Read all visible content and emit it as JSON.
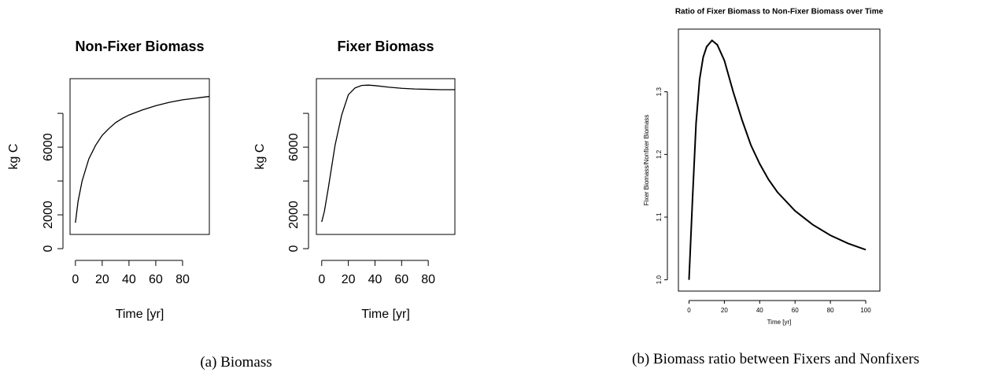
{
  "chart_data": [
    {
      "type": "line",
      "title": "Non-Fixer Biomass",
      "x_label": "Time [yr]",
      "y_label": "kg C",
      "color": "#000000",
      "x": [
        0,
        2,
        5,
        10,
        15,
        20,
        25,
        30,
        35,
        40,
        50,
        60,
        70,
        80,
        90,
        100
      ],
      "values": [
        1530,
        2800,
        4000,
        5300,
        6100,
        6700,
        7100,
        7450,
        7700,
        7900,
        8200,
        8450,
        8650,
        8800,
        8900,
        9000
      ],
      "xlim": [
        -4,
        100
      ],
      "ylim": [
        840,
        10050
      ],
      "xticks": [
        0,
        20,
        40,
        60,
        80
      ],
      "yticks": [
        0,
        2000,
        {
          "value": 4000,
          "label": null
        },
        6000,
        {
          "value": 8000,
          "label": null
        }
      ]
    },
    {
      "type": "line",
      "title": "Fixer Biomass",
      "x_label": "Time [yr]",
      "y_label": "kg C",
      "color": "#000000",
      "x": [
        0,
        2,
        5,
        10,
        15,
        20,
        25,
        30,
        35,
        40,
        50,
        60,
        70,
        80,
        90,
        100
      ],
      "values": [
        1580,
        2200,
        3600,
        6100,
        7900,
        9100,
        9500,
        9650,
        9670,
        9640,
        9550,
        9480,
        9440,
        9420,
        9400,
        9400
      ],
      "xlim": [
        -4,
        100
      ],
      "ylim": [
        840,
        10050
      ],
      "xticks": [
        0,
        20,
        40,
        60,
        80
      ],
      "yticks": [
        0,
        2000,
        {
          "value": 4000,
          "label": null
        },
        6000,
        {
          "value": 8000,
          "label": null
        }
      ]
    },
    {
      "type": "line",
      "title": "Ratio of Fixer Biomass to Non-Fixer Biomass over Time",
      "x_label": "Time [yr]",
      "y_label": "Fixer Biomass/Nonfixer Biomass",
      "color": "#000000",
      "x": [
        0,
        2,
        4,
        6,
        8,
        10,
        13,
        16,
        20,
        25,
        30,
        35,
        40,
        45,
        50,
        60,
        70,
        80,
        90,
        100
      ],
      "values": [
        1.0,
        1.13,
        1.25,
        1.32,
        1.355,
        1.372,
        1.382,
        1.375,
        1.35,
        1.3,
        1.255,
        1.215,
        1.185,
        1.16,
        1.14,
        1.11,
        1.088,
        1.071,
        1.058,
        1.048
      ],
      "xlim": [
        -6,
        108
      ],
      "ylim": [
        0.982,
        1.4
      ],
      "xticks": [
        0,
        20,
        40,
        60,
        80,
        100
      ],
      "yticks": [
        {
          "value": 1,
          "label": "1.0"
        },
        1.1,
        1.2,
        1.3
      ]
    }
  ],
  "captions": [
    "(a) Biomass",
    "(b) Biomass ratio between Fixers and Nonfixers"
  ]
}
